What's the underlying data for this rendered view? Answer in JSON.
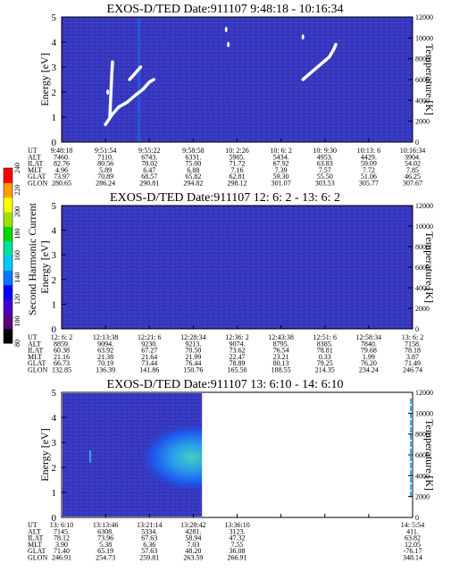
{
  "chart_data": [
    {
      "type": "heatmap",
      "title": "EXOS-D/TED  Date:911107  9:48:18 - 10:16:34",
      "ylabel": "Energy [eV]",
      "ylabel_right": "Temperature [K]",
      "ylim": [
        0,
        5
      ],
      "ylim_right": [
        0,
        12000
      ],
      "yticks": [
        "0",
        "1",
        "2",
        "3",
        "4",
        "5"
      ],
      "yticks_right": [
        "0",
        "2000",
        "4000",
        "6000",
        "8000",
        "10000",
        "12000"
      ],
      "background": "#3535bd",
      "features": [
        {
          "label": "white temperature trace",
          "points": [
            [
              1.0,
              0.7
            ],
            [
              1.15,
              1.1
            ],
            [
              1.3,
              1.4
            ],
            [
              1.5,
              1.6
            ],
            [
              1.7,
              1.9
            ],
            [
              1.85,
              2.1
            ],
            [
              2.0,
              2.4
            ],
            [
              2.1,
              2.5
            ]
          ]
        },
        {
          "label": "white temperature trace",
          "points": [
            [
              1.55,
              2.5
            ],
            [
              1.65,
              2.7
            ],
            [
              1.75,
              2.9
            ],
            [
              1.8,
              3.0
            ]
          ]
        },
        {
          "label": "white temperature trace",
          "points": [
            [
              5.5,
              2.5
            ],
            [
              5.7,
              2.8
            ],
            [
              5.9,
              3.1
            ],
            [
              6.1,
              3.4
            ],
            [
              6.2,
              3.7
            ],
            [
              6.25,
              3.9
            ]
          ]
        },
        {
          "label": "white temperature trace",
          "points": [
            [
              1.1,
              1.0
            ],
            [
              1.12,
              1.8
            ],
            [
              1.14,
              2.6
            ],
            [
              1.16,
              3.2
            ]
          ]
        }
      ],
      "ephemeris": {
        "row_labels": [
          "UT",
          "ALT",
          "ILAT",
          "MLT",
          "GLAT",
          "GLON"
        ],
        "columns": [
          [
            "9:48:18",
            "7460.",
            "82.76",
            "4.96",
            "73.97",
            "280.65"
          ],
          [
            "9:51:54",
            "7110.",
            "80.56",
            "5.89",
            "70.89",
            "286.24"
          ],
          [
            "9:55:22",
            "6743.",
            "78.02",
            "6.47",
            "68.57",
            "290.81"
          ],
          [
            "9:58:58",
            "6331.",
            "75.00",
            "6.88",
            "65.82",
            "294.82"
          ],
          [
            "10: 2:26",
            "5905.",
            "71.72",
            "7.16",
            "62.81",
            "298.12"
          ],
          [
            "10: 6: 2",
            "5434.",
            "67.92",
            "7.39",
            "59.30",
            "301.07"
          ],
          [
            "10: 9:30",
            "4953.",
            "63.83",
            "7.57",
            "55.50",
            "303.53"
          ],
          [
            "10:13: 6",
            "4429.",
            "59.09",
            "7.72",
            "51.06",
            "305.77"
          ],
          [
            "10:16:34",
            "3904.",
            "54.02",
            "7.85",
            "46.25",
            "307.67"
          ]
        ]
      }
    },
    {
      "type": "heatmap",
      "title": "EXOS-D/TED   Date:911107  12: 6: 2 - 13: 6: 2",
      "ylabel": "Energy [eV]",
      "ylabel_right": "Temperature [K]",
      "ylim": [
        0,
        5
      ],
      "ylim_right": [
        0,
        12000
      ],
      "yticks": [
        "0",
        "1",
        "2",
        "3",
        "4",
        "5"
      ],
      "yticks_right": [
        "0",
        "2000",
        "4000",
        "6000",
        "8000",
        "10000",
        "12000"
      ],
      "background": "#3c34b8",
      "colorbar": {
        "label": "Second Harmonic Current",
        "ticks": [
          "80",
          "100",
          "120",
          "140",
          "160",
          "180",
          "200",
          "220",
          "240"
        ],
        "colors": [
          "#000000",
          "#5a0078",
          "#4400cc",
          "#0000ff",
          "#0078ff",
          "#00c8ff",
          "#00e0a0",
          "#00d800",
          "#a0e000",
          "#ffff00",
          "#ffa000",
          "#ff0000"
        ]
      },
      "ephemeris": {
        "row_labels": [
          "UT",
          "ALT",
          "ILAT",
          "MLT",
          "GLAT",
          "GLON"
        ],
        "columns": [
          [
            "12: 6: 2",
            "8859.",
            "60.38",
            "21.16",
            "66.73",
            "132.85"
          ],
          [
            "12:13:38",
            "9094.",
            "63.92",
            "21.38",
            "70.19",
            "136.39"
          ],
          [
            "12:21: 6",
            "9230.",
            "67.27",
            "21.64",
            "73.44",
            "141.86"
          ],
          [
            "12:28:34",
            "9213.",
            "70.50",
            "21.99",
            "76.44",
            "150.76"
          ],
          [
            "12:36: 2",
            "9074.",
            "73.62",
            "22.47",
            "78.89",
            "165.50"
          ],
          [
            "12:43:38",
            "8795.",
            "76.54",
            "23.21",
            "80.13",
            "188.55"
          ],
          [
            "12:51: 6",
            "8385.",
            "78.81",
            "0.33",
            "79.25",
            "214.35"
          ],
          [
            "12:58:34",
            "7840.",
            "79.68",
            "1.99",
            "76.20",
            "234.24"
          ],
          [
            "13: 6: 2",
            "7158.",
            "78.18",
            "3.87",
            "71.49",
            "246.74"
          ]
        ]
      }
    },
    {
      "type": "heatmap",
      "title": "EXOS-D/TED   Date:911107  13: 6:10 - 14: 6:10",
      "ylabel": "Energy [eV]",
      "ylabel_right": "Temperature [K]",
      "ylim": [
        0,
        5
      ],
      "ylim_right": [
        0,
        12000
      ],
      "yticks": [
        "0",
        "1",
        "2",
        "3",
        "4",
        "5"
      ],
      "yticks_right": [
        "0",
        "2000",
        "4000",
        "6000",
        "8000",
        "10000",
        "12000"
      ],
      "background": "#3c34b8",
      "data_end_fraction": 0.4,
      "features": [
        {
          "label": "enhancement",
          "center_x_fraction": 0.37,
          "center_energy": 2.4,
          "color": "#40c8c0"
        }
      ],
      "ephemeris": {
        "row_labels": [
          "UT",
          "ALT",
          "ILAT",
          "MLT",
          "GLAT",
          "GLON"
        ],
        "columns": [
          [
            "13: 6:10",
            "7145.",
            "78.12",
            "3.90",
            "71.40",
            "246.91"
          ],
          [
            "13:13:46",
            "6308.",
            "73.96",
            "5.38",
            "65.19",
            "254.73"
          ],
          [
            "13:21:14",
            "5334.",
            "67.63",
            "6.36",
            "57.63",
            "259.81"
          ],
          [
            "13:28:42",
            "4281.",
            "58.94",
            "7.03",
            "48.20",
            "263.59"
          ],
          [
            "13:36:10",
            "3123.",
            "47.32",
            "7.55",
            "36.08",
            "266.91"
          ],
          [
            "",
            "",
            "",
            "",
            "",
            ""
          ],
          [
            "",
            "",
            "",
            "",
            "",
            ""
          ],
          [
            "",
            "",
            "",
            "",
            "",
            ""
          ],
          [
            "14: 5:54",
            "411.",
            "63.82",
            "12.05",
            "-76.17",
            "348.14"
          ]
        ]
      }
    }
  ]
}
